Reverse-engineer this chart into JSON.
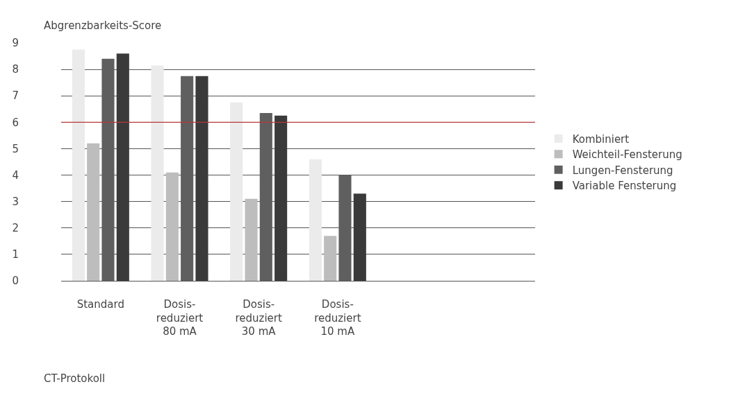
{
  "chart_data": {
    "type": "bar",
    "ylabel": "Abgrenzbarkeits-Score",
    "xlabel": "CT-Protokoll",
    "categories": [
      "Standard",
      "Dosis-\nreduziert\n80 mA",
      "Dosis-\nreduziert\n30 mA",
      "Dosis-\nreduziert\n10 mA",
      null,
      null
    ],
    "series": [
      {
        "name": "Kombiniert",
        "color": "#ebebeb",
        "values": [
          8.75,
          8.15,
          6.75,
          4.6,
          null,
          null
        ]
      },
      {
        "name": "Weichteil-Fensterung",
        "color": "#bdbdbd",
        "values": [
          5.2,
          4.1,
          3.1,
          1.7,
          null,
          null
        ]
      },
      {
        "name": "Lungen-Fensterung",
        "color": "#5f5f5f",
        "values": [
          8.4,
          7.75,
          6.35,
          4.0,
          null,
          null
        ]
      },
      {
        "name": "Variable Fensterung",
        "color": "#3a3a3a",
        "values": [
          8.6,
          7.75,
          6.25,
          3.3,
          null,
          null
        ]
      }
    ],
    "ylim": [
      0,
      9
    ],
    "yticks": [
      0,
      1,
      2,
      3,
      4,
      5,
      6,
      7,
      8,
      9
    ],
    "grid": "y",
    "legend": "right",
    "ref_lines": [
      {
        "axis": "y",
        "value": 6,
        "color": "#b03a3a"
      }
    ]
  }
}
